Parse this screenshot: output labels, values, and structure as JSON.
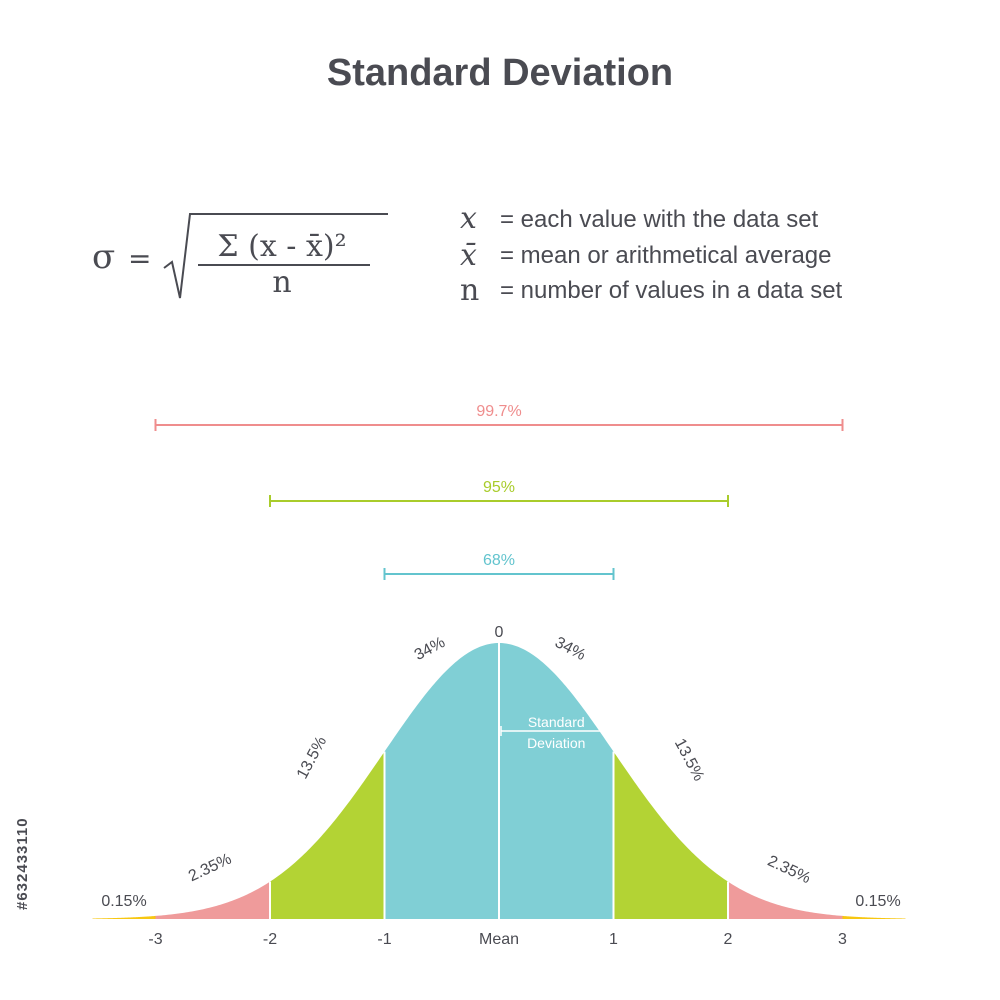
{
  "title": "Standard Deviation",
  "formula": {
    "sigma": "σ",
    "equals": "=",
    "numerator": "Σ (x - x̄)²",
    "denominator": "n"
  },
  "legend": [
    {
      "symbol": "x",
      "text": "= each value with the data set"
    },
    {
      "symbol": "x̄",
      "text": "= mean or arithmetical average"
    },
    {
      "symbol": "n",
      "text": "= number of values in a data set"
    }
  ],
  "colors": {
    "text": "#4a4b52",
    "center": "#80cfd5",
    "mid": "#b3d334",
    "outer": "#ef9b9b",
    "tail": "#f7c712",
    "range997": "#ef8d8d",
    "range95": "#a9cc2b",
    "range68": "#63c4ce"
  },
  "chart_data": {
    "type": "area",
    "distribution": "normal",
    "x_ticks": [
      "-3",
      "-2",
      "-1",
      "Mean",
      "1",
      "2",
      "3"
    ],
    "x_values": [
      -3,
      -2,
      -1,
      0,
      1,
      2,
      3
    ],
    "top_label": "0",
    "segments": [
      {
        "from": -4,
        "to": -3,
        "label": "0.15%",
        "color": "tail"
      },
      {
        "from": -3,
        "to": -2,
        "label": "2.35%",
        "color": "outer"
      },
      {
        "from": -2,
        "to": -1,
        "label": "13.5%",
        "color": "mid"
      },
      {
        "from": -1,
        "to": 0,
        "label": "34%",
        "color": "center"
      },
      {
        "from": 0,
        "to": 1,
        "label": "34%",
        "color": "center"
      },
      {
        "from": 1,
        "to": 2,
        "label": "13.5%",
        "color": "mid"
      },
      {
        "from": 2,
        "to": 3,
        "label": "2.35%",
        "color": "outer"
      },
      {
        "from": 3,
        "to": 4,
        "label": "0.15%",
        "color": "tail"
      }
    ],
    "ranges": [
      {
        "label": "99.7%",
        "from": -3,
        "to": 3,
        "color": "range997"
      },
      {
        "label": "95%",
        "from": -2,
        "to": 2,
        "color": "range95"
      },
      {
        "label": "68%",
        "from": -1,
        "to": 1,
        "color": "range68"
      }
    ],
    "annotation": {
      "line1": "Standard",
      "line2": "Deviation"
    }
  },
  "watermark": "#632433110"
}
